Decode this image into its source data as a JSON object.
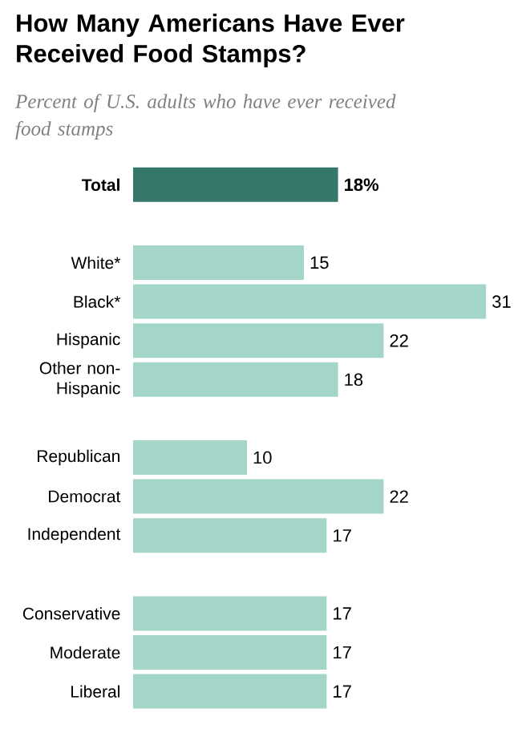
{
  "chart_data": {
    "type": "bar",
    "orientation": "horizontal",
    "title": "How Many Americans Have Ever Received Food Stamps?",
    "subtitle": "Percent of U.S. adults who have ever received food stamps",
    "categories": [
      "Total",
      null,
      "White*",
      "Black*",
      "Hispanic",
      "Other non-Hispanic",
      null,
      "Republican",
      "Democrat",
      "Independent",
      null,
      "Conservative",
      "Moderate",
      "Liberal"
    ],
    "values": [
      18,
      null,
      15,
      31,
      22,
      18,
      null,
      10,
      22,
      17,
      null,
      17,
      17,
      17
    ],
    "colors": [
      "#35776a",
      null,
      "#a3d5c9",
      "#a3d5c9",
      "#a3d5c9",
      "#a3d5c9",
      null,
      "#a3d5c9",
      "#a3d5c9",
      "#a3d5c9",
      null,
      "#a3d5c9",
      "#a3d5c9",
      "#a3d5c9"
    ],
    "value_labels": [
      "18%",
      null,
      "15",
      "31",
      "22",
      "18",
      null,
      "10",
      "22",
      "17",
      null,
      "17",
      "17",
      "17"
    ],
    "grid": false
  }
}
